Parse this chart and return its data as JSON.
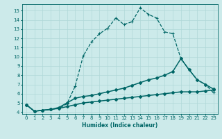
{
  "xlabel": "Humidex (Indice chaleur)",
  "bg_color": "#cceaea",
  "line_color": "#006666",
  "grid_color": "#b0d8d8",
  "xlim": [
    -0.5,
    23.5
  ],
  "ylim": [
    3.8,
    15.7
  ],
  "xticks": [
    0,
    1,
    2,
    3,
    4,
    5,
    6,
    7,
    8,
    9,
    10,
    11,
    12,
    13,
    14,
    15,
    16,
    17,
    18,
    19,
    20,
    21,
    22,
    23
  ],
  "yticks": [
    4,
    5,
    6,
    7,
    8,
    9,
    10,
    11,
    12,
    13,
    14,
    15
  ],
  "line1_x": [
    0,
    1,
    2,
    3,
    4,
    5,
    6,
    7,
    8,
    9,
    10,
    11,
    12,
    13,
    14,
    15,
    16,
    17,
    18,
    19,
    20,
    21,
    22,
    23
  ],
  "line1_y": [
    4.8,
    4.1,
    4.2,
    4.3,
    4.4,
    4.9,
    6.8,
    10.1,
    11.6,
    12.5,
    13.1,
    14.2,
    13.5,
    13.8,
    15.3,
    14.6,
    14.2,
    12.7,
    12.5,
    9.8,
    8.6,
    7.5,
    7.0,
    6.1
  ],
  "line2_x": [
    0,
    1,
    2,
    3,
    4,
    5,
    6,
    7,
    8,
    9,
    10,
    11,
    12,
    13,
    14,
    15,
    16,
    17,
    18,
    19,
    20,
    21,
    22,
    23
  ],
  "line2_y": [
    4.8,
    4.1,
    4.2,
    4.3,
    4.5,
    5.0,
    5.5,
    5.7,
    5.8,
    6.0,
    6.2,
    6.4,
    6.6,
    6.9,
    7.2,
    7.5,
    7.7,
    8.0,
    8.4,
    9.8,
    8.6,
    7.5,
    7.0,
    6.5
  ],
  "line3_x": [
    0,
    1,
    2,
    3,
    4,
    5,
    6,
    7,
    8,
    9,
    10,
    11,
    12,
    13,
    14,
    15,
    16,
    17,
    18,
    19,
    20,
    21,
    22,
    23
  ],
  "line3_y": [
    4.8,
    4.1,
    4.2,
    4.3,
    4.4,
    4.6,
    4.8,
    5.0,
    5.1,
    5.2,
    5.3,
    5.4,
    5.5,
    5.6,
    5.7,
    5.8,
    5.9,
    6.0,
    6.1,
    6.2,
    6.2,
    6.2,
    6.3,
    6.4
  ]
}
